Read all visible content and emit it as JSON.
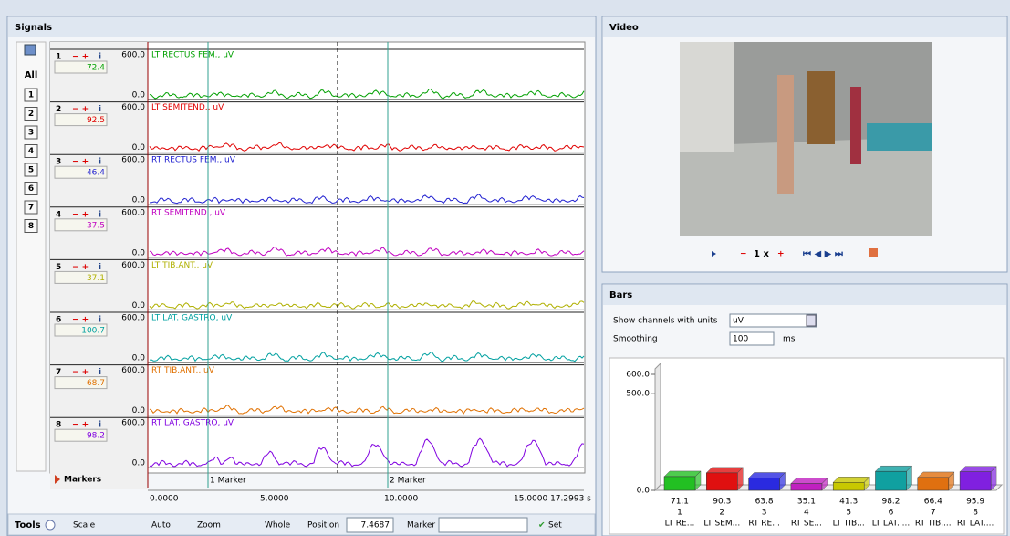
{
  "signals": {
    "title": "Signals",
    "all": "All",
    "buttons": [
      "1",
      "2",
      "3",
      "4",
      "5",
      "6",
      "7",
      "8"
    ],
    "channels": [
      {
        "number": "1",
        "value": "72.4",
        "max": "600.0",
        "min": "0.0",
        "name": "LT RECTUS FEM., uV",
        "color": "#00a000"
      },
      {
        "number": "2",
        "value": "92.5",
        "max": "600.0",
        "min": "0.0",
        "name": "LT SEMITEND., uV",
        "color": "#e00000"
      },
      {
        "number": "3",
        "value": "46.4",
        "max": "600.0",
        "min": "0.0",
        "name": "RT RECTUS FEM., uV",
        "color": "#2020d0"
      },
      {
        "number": "4",
        "value": "37.5",
        "max": "600.0",
        "min": "0.0",
        "name": "RT SEMITEND., uV",
        "color": "#c000c0"
      },
      {
        "number": "5",
        "value": "37.1",
        "max": "600.0",
        "min": "0.0",
        "name": "LT TIB.ANT., uV",
        "color": "#b0b000"
      },
      {
        "number": "6",
        "value": "100.7",
        "max": "600.0",
        "min": "0.0",
        "name": "LT LAT. GASTRO, uV",
        "color": "#00a0a0"
      },
      {
        "number": "7",
        "value": "68.7",
        "max": "600.0",
        "min": "0.0",
        "name": "RT TIB.ANT., uV",
        "color": "#e07000"
      },
      {
        "number": "8",
        "value": "98.2",
        "max": "600.0",
        "min": "0.0",
        "name": "RT LAT. GASTRO, uV",
        "color": "#8000e0"
      }
    ],
    "markers_label": "Markers",
    "markers": [
      "1 Marker",
      "2 Marker"
    ],
    "time_ticks": [
      "0.0000",
      "5.0000",
      "10.0000",
      "15.0000 17.2993 s"
    ],
    "toolbar": {
      "tools": "Tools",
      "scale": "Scale",
      "auto": "Auto",
      "zoom": "Zoom",
      "whole": "Whole",
      "position_label": "Position",
      "position": "7.4687",
      "marker_label": "Marker",
      "set": "Set"
    }
  },
  "video": {
    "title": "Video",
    "speed": "1 x"
  },
  "bars": {
    "title": "Bars",
    "units_label": "Show channels with units",
    "units": "uV",
    "smoothing_label": "Smoothing",
    "smoothing": "100",
    "smoothing_unit": "ms",
    "chart": {
      "type": "bar",
      "ylim": [
        0,
        600
      ],
      "yticks": [
        {
          "value": 0,
          "label": "0.0"
        },
        {
          "value": 500,
          "label": "500.0"
        },
        {
          "value": 600,
          "label": "600.0"
        }
      ],
      "categories": [
        "1",
        "2",
        "3",
        "4",
        "5",
        "6",
        "7",
        "8"
      ],
      "names": [
        "LT RE...",
        "LT SEM...",
        "RT RE...",
        "RT SE...",
        "LT TIB...",
        "LT LAT. ...",
        "RT TIB....",
        "RT LAT...."
      ],
      "values": [
        71.1,
        90.3,
        63.8,
        35.1,
        41.3,
        98.2,
        66.4,
        95.9
      ],
      "colors": [
        "#22c022",
        "#e01010",
        "#2a2ae0",
        "#c020c0",
        "#c8c800",
        "#10a0a0",
        "#e07010",
        "#8020e0"
      ]
    }
  }
}
